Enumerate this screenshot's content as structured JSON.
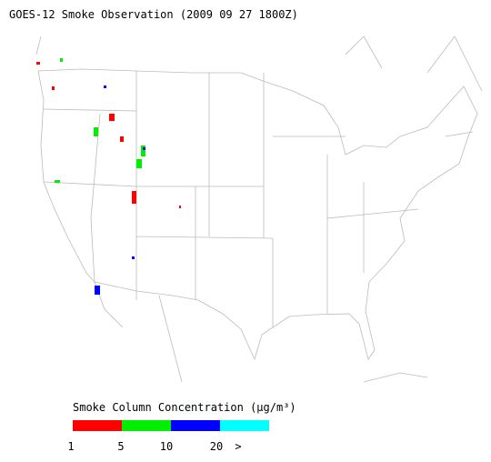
{
  "header": {
    "title": "GOES-12 Smoke Observation (2009 09 27  1800Z)"
  },
  "legend": {
    "title": "Smoke Column Concentration (μg/m³)",
    "colors": [
      "#ff0000",
      "#00ee00",
      "#0000ff",
      "#00ffff"
    ],
    "labels": [
      "1",
      "5",
      "10",
      "20",
      ">"
    ]
  }
}
